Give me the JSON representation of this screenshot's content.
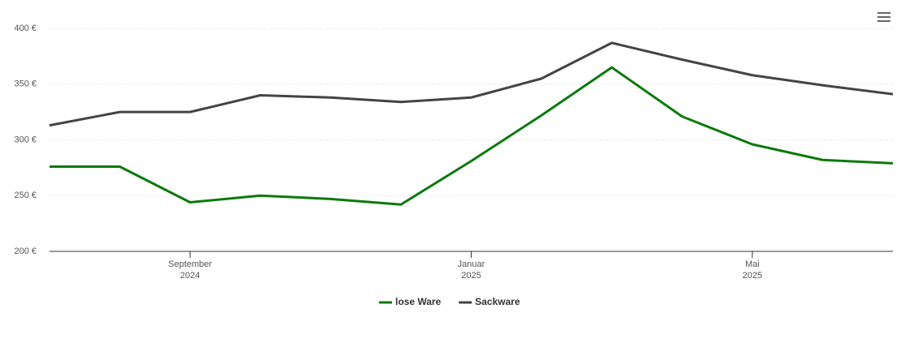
{
  "chart_data": {
    "type": "line",
    "x": [
      "2024-07",
      "2024-08",
      "2024-09",
      "2024-10",
      "2024-11",
      "2024-12",
      "2025-01",
      "2025-02",
      "2025-03",
      "2025-04",
      "2025-05",
      "2025-06",
      "2025-07"
    ],
    "series": [
      {
        "name": "lose Ware",
        "color": "#0b7a0b",
        "values": [
          276,
          276,
          244,
          250,
          247,
          242,
          281,
          322,
          365,
          321,
          296,
          282,
          279
        ]
      },
      {
        "name": "Sackware",
        "color": "#444444",
        "values": [
          313,
          325,
          325,
          340,
          338,
          334,
          338,
          355,
          387,
          372,
          358,
          349,
          341
        ]
      }
    ],
    "xlim": [
      "2024-07",
      "2025-07"
    ],
    "xticks": [
      {
        "value": "2024-09",
        "label": [
          "September",
          "2024"
        ]
      },
      {
        "value": "2025-01",
        "label": [
          "Januar",
          "2025"
        ]
      },
      {
        "value": "2025-05",
        "label": [
          "Mai",
          "2025"
        ]
      }
    ],
    "ylim": [
      200,
      400
    ],
    "yticks": [
      {
        "value": 200,
        "label": "200 €"
      },
      {
        "value": 250,
        "label": "250 €"
      },
      {
        "value": 300,
        "label": "300 €"
      },
      {
        "value": 350,
        "label": "350 €"
      },
      {
        "value": 400,
        "label": "400 €"
      }
    ],
    "grid": true,
    "legend": "bottom"
  }
}
